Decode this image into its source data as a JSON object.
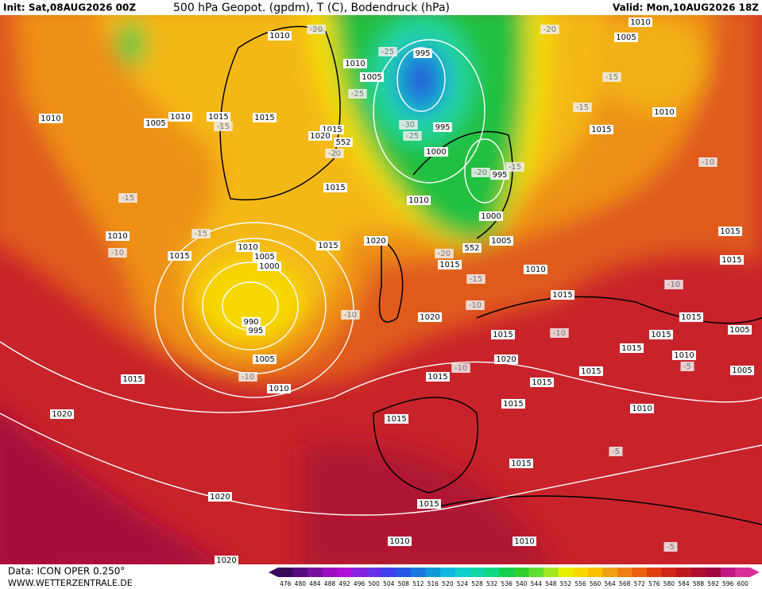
{
  "header": {
    "init": "Init: Sat,08AUG2026 00Z",
    "title": "500 hPa Geopot. (gpdm), T (C), Bodendruck (hPa)",
    "valid": "Valid: Mon,10AUG2026 18Z"
  },
  "footer": {
    "data_source": "Data: ICON OPER 0.250°",
    "website": "WWW.WETTERZENTRALE.DE"
  },
  "map": {
    "labels": [
      1010,
      -20,
      1010,
      1005,
      -20,
      995,
      -25,
      1010,
      1005,
      -25,
      -15,
      -15,
      1010,
      1010,
      1005,
      1010,
      1015,
      1015,
      -15,
      1015,
      1020,
      552,
      -30,
      995,
      -25,
      1015,
      1000,
      -20,
      -20,
      995,
      -15,
      -10,
      1015,
      1010,
      -15,
      1000,
      1010,
      -15,
      1005,
      1020,
      1010,
      1015,
      1005,
      -20,
      1015,
      552,
      1015,
      -10,
      1015,
      1000,
      1010,
      1015,
      -15,
      -10,
      1015,
      -10,
      990,
      995,
      -10,
      1020,
      1015,
      1015,
      -10,
      1015,
      1005,
      1015,
      1020,
      1010,
      -5,
      1005,
      -10,
      1015,
      1005,
      -10,
      1015,
      1015,
      1010,
      1015,
      1010,
      1015,
      1015,
      1020,
      -5,
      1015,
      1020,
      1015,
      1010,
      1010,
      -5,
      1020
    ]
  },
  "colorbar": {
    "labels": [
      476,
      480,
      484,
      488,
      492,
      496,
      500,
      504,
      508,
      512,
      516,
      520,
      524,
      528,
      532,
      536,
      540,
      544,
      548,
      552,
      556,
      560,
      564,
      568,
      572,
      576,
      580,
      584,
      588,
      592,
      596,
      600
    ],
    "colors": [
      "#3a0a5a",
      "#5a0a80",
      "#7a10a0",
      "#9a10c0",
      "#b010d8",
      "#8a20e0",
      "#6a30e8",
      "#4040f0",
      "#2858e8",
      "#1a78e0",
      "#1098d8",
      "#10b8e0",
      "#10d0d0",
      "#10d8a8",
      "#10d880",
      "#18d050",
      "#30d030",
      "#60e030",
      "#a0e820",
      "#e8f000",
      "#f8d800",
      "#f8c000",
      "#f0a010",
      "#f08010",
      "#e86010",
      "#e04010",
      "#d02818",
      "#c01820",
      "#b00c30",
      "#a00840",
      "#c01880",
      "#d83098"
    ]
  }
}
